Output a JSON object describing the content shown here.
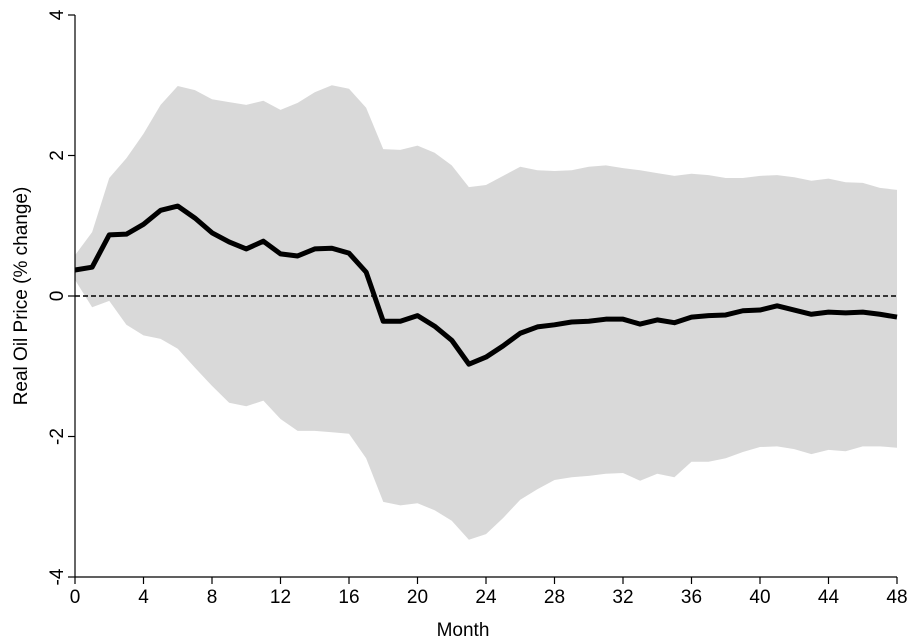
{
  "chart_data": {
    "type": "impulse-response",
    "x_label": "Month",
    "y_label": "Real Oil Price (% change)",
    "x": [
      0,
      1,
      2,
      3,
      4,
      5,
      6,
      7,
      8,
      9,
      10,
      11,
      12,
      13,
      14,
      15,
      16,
      17,
      18,
      19,
      20,
      21,
      22,
      23,
      24,
      25,
      26,
      27,
      28,
      29,
      30,
      31,
      32,
      33,
      34,
      35,
      36,
      37,
      38,
      39,
      40,
      41,
      42,
      43,
      44,
      45,
      46,
      47,
      48
    ],
    "values": [
      0.37,
      0.41,
      0.87,
      0.88,
      1.02,
      1.22,
      1.28,
      1.11,
      0.9,
      0.77,
      0.67,
      0.78,
      0.6,
      0.57,
      0.67,
      0.68,
      0.61,
      0.34,
      -0.36,
      -0.36,
      -0.28,
      -0.43,
      -0.63,
      -0.97,
      -0.87,
      -0.71,
      -0.53,
      -0.44,
      -0.41,
      -0.37,
      -0.36,
      -0.33,
      -0.33,
      -0.4,
      -0.34,
      -0.38,
      -0.3,
      -0.28,
      -0.27,
      -0.21,
      -0.2,
      -0.14,
      -0.2,
      -0.26,
      -0.23,
      -0.24,
      -0.23,
      -0.26,
      -0.3
    ],
    "upper": [
      0.58,
      0.91,
      1.68,
      1.96,
      2.31,
      2.72,
      2.99,
      2.93,
      2.8,
      2.76,
      2.72,
      2.78,
      2.65,
      2.75,
      2.9,
      3.0,
      2.95,
      2.68,
      2.09,
      2.08,
      2.14,
      2.04,
      1.86,
      1.55,
      1.58,
      1.71,
      1.84,
      1.79,
      1.78,
      1.79,
      1.84,
      1.86,
      1.82,
      1.79,
      1.75,
      1.71,
      1.74,
      1.72,
      1.68,
      1.68,
      1.71,
      1.72,
      1.69,
      1.64,
      1.67,
      1.62,
      1.61,
      1.54,
      1.51
    ],
    "lower": [
      0.23,
      -0.16,
      -0.07,
      -0.41,
      -0.56,
      -0.61,
      -0.75,
      -1.02,
      -1.28,
      -1.52,
      -1.57,
      -1.49,
      -1.75,
      -1.92,
      -1.92,
      -1.94,
      -1.96,
      -2.31,
      -2.93,
      -2.98,
      -2.95,
      -3.05,
      -3.2,
      -3.47,
      -3.39,
      -3.16,
      -2.9,
      -2.75,
      -2.62,
      -2.58,
      -2.56,
      -2.53,
      -2.52,
      -2.63,
      -2.53,
      -2.58,
      -2.36,
      -2.36,
      -2.31,
      -2.22,
      -2.15,
      -2.14,
      -2.18,
      -2.25,
      -2.19,
      -2.21,
      -2.14,
      -2.14,
      -2.16
    ],
    "color": "#000000",
    "band_color": "#d9d9d9",
    "reference_line": 0,
    "xlim": [
      0,
      48
    ],
    "xticks": [
      0,
      4,
      8,
      12,
      16,
      20,
      24,
      28,
      32,
      36,
      40,
      44,
      48
    ],
    "ylim": [
      -4,
      4
    ],
    "yticks": [
      -4,
      -2,
      0,
      2,
      4
    ]
  }
}
